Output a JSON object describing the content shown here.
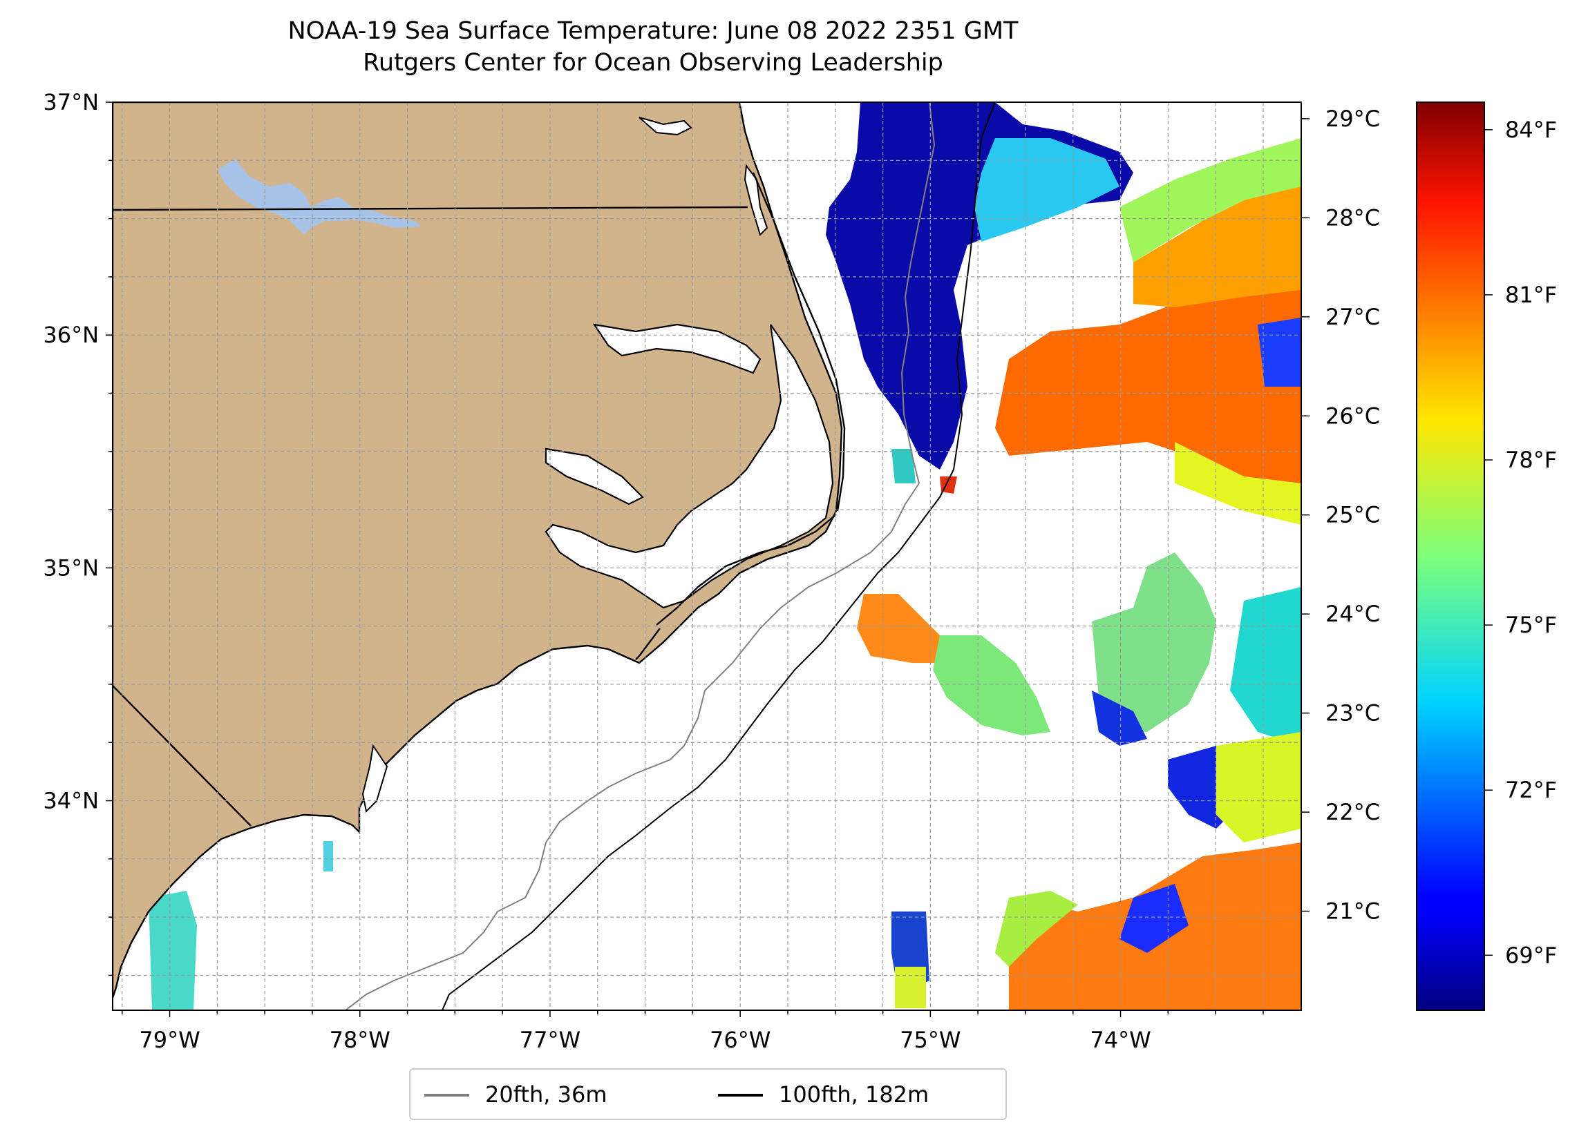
{
  "title": {
    "line1": "NOAA-19 Sea Surface Temperature: June 08 2022 2351 GMT",
    "line2": "Rutgers Center for Ocean Observing Leadership"
  },
  "map": {
    "extent": {
      "lon_min": -79.3,
      "lon_max": -73.05,
      "lat_min": 33.1,
      "lat_max": 37.0
    },
    "lon_ticks": [
      {
        "value": -79,
        "label": "79°W"
      },
      {
        "value": -78,
        "label": "78°W"
      },
      {
        "value": -77,
        "label": "77°W"
      },
      {
        "value": -76,
        "label": "76°W"
      },
      {
        "value": -75,
        "label": "75°W"
      },
      {
        "value": -74,
        "label": "74°W"
      }
    ],
    "lat_ticks": [
      {
        "value": 37,
        "label": "37°N"
      },
      {
        "value": 36,
        "label": "36°N"
      },
      {
        "value": 35,
        "label": "35°N"
      },
      {
        "value": 34,
        "label": "34°N"
      }
    ],
    "gridlines": true,
    "land_color": "#d2b48c",
    "lake_color": "#a6c2e6",
    "sst_colormap": "jet",
    "isobath_colors": {
      "20fth": "#808080",
      "100fth": "#000000"
    }
  },
  "colorbar": {
    "celsius_ticks": [
      "29°C",
      "28°C",
      "27°C",
      "26°C",
      "25°C",
      "24°C",
      "23°C",
      "22°C",
      "21°C"
    ],
    "fahrenheit_ticks": [
      "84°F",
      "81°F",
      "78°F",
      "75°F",
      "72°F",
      "69°F"
    ],
    "range_f": [
      68.0,
      84.5
    ]
  },
  "legend": {
    "items": [
      {
        "label": "20fth, 36m",
        "color": "#808080"
      },
      {
        "label": "100fth, 182m",
        "color": "#000000"
      }
    ]
  }
}
